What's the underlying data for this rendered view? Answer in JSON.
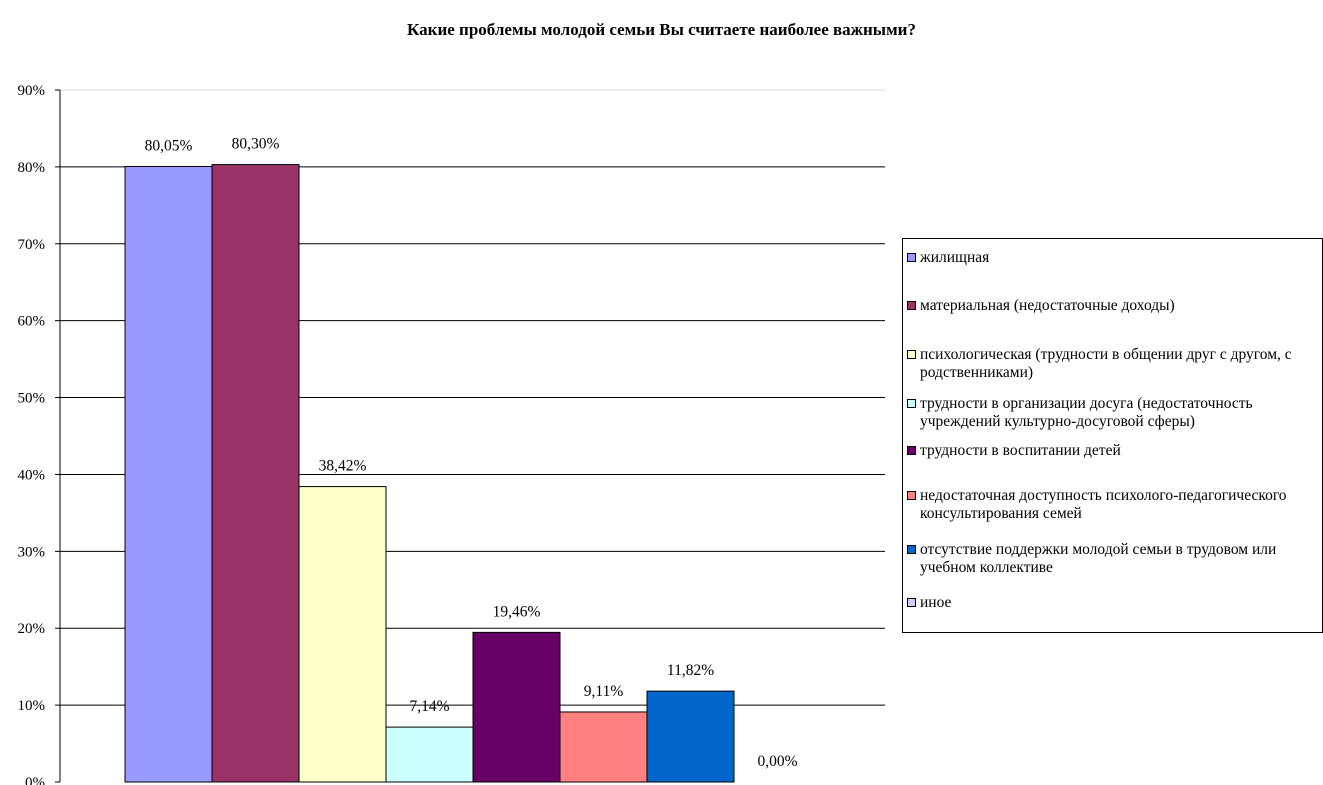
{
  "chart_data": {
    "type": "bar",
    "title": "Какие проблемы молодой семьи Вы считаете наиболее важными?",
    "xlabel": "",
    "ylabel": "",
    "ylim": [
      0,
      90
    ],
    "y_ticks": [
      "0%",
      "10%",
      "20%",
      "30%",
      "40%",
      "50%",
      "60%",
      "70%",
      "80%",
      "90%"
    ],
    "grid": true,
    "legend_position": "right",
    "series": [
      {
        "name": "жилищная",
        "value": 80.05,
        "label": "80,05%",
        "color": "#9999FF"
      },
      {
        "name": "материальная (недостаточные доходы)",
        "value": 80.3,
        "label": "80,30%",
        "color": "#993366"
      },
      {
        "name": "психологическая (трудности в общении друг с другом, с родственниками)",
        "value": 38.42,
        "label": "38,42%",
        "color": "#FFFFCC"
      },
      {
        "name": "трудности в организации досуга (недостаточность учреждений культурно-досуговой сферы)",
        "value": 7.14,
        "label": "7,14%",
        "color": "#CCFFFF"
      },
      {
        "name": "трудности в воспитании детей",
        "value": 19.46,
        "label": "19,46%",
        "color": "#660066"
      },
      {
        "name": "недостаточная доступность психолого-педагогического консультирования семей",
        "value": 9.11,
        "label": "9,11%",
        "color": "#FF8080"
      },
      {
        "name": "отсутствие поддержки молодой семьи в трудовом или учебном коллективе",
        "value": 11.82,
        "label": "11,82%",
        "color": "#0066CC"
      },
      {
        "name": "иное",
        "value": 0.0,
        "label": "0,00%",
        "color": "#CCCCFF"
      }
    ]
  }
}
